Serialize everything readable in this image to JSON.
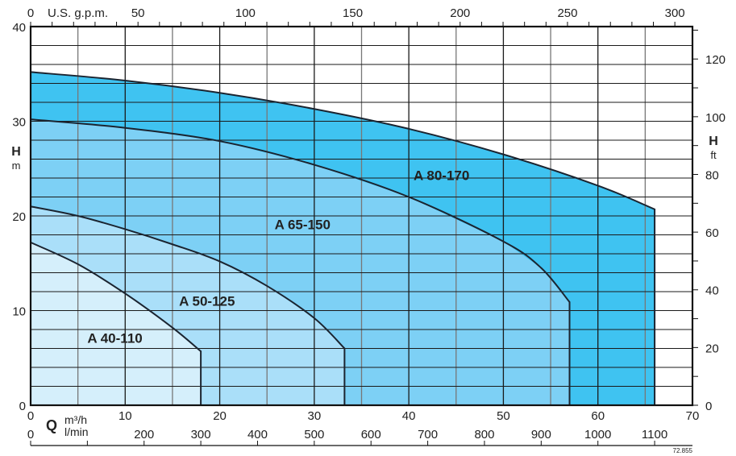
{
  "chart_data": {
    "type": "area",
    "x_axis_bottom_primary": {
      "label": "m³/h",
      "symbol": "Q",
      "range": [
        0,
        70
      ],
      "ticks": [
        0,
        10,
        20,
        30,
        40,
        50,
        60,
        70
      ]
    },
    "x_axis_bottom_secondary": {
      "label": "l/min",
      "range": [
        0,
        1166.7
      ],
      "ticks": [
        0,
        200,
        300,
        400,
        500,
        600,
        700,
        800,
        900,
        1000,
        1100
      ]
    },
    "x_axis_top": {
      "label": "U.S. g.p.m.",
      "range": [
        0,
        308.2
      ],
      "ticks": [
        0,
        50,
        100,
        150,
        200,
        250,
        300
      ]
    },
    "y_axis_left": {
      "label": "H",
      "unit": "m",
      "range": [
        0,
        40
      ],
      "ticks": [
        0,
        10,
        20,
        30,
        40
      ]
    },
    "y_axis_right": {
      "label": "H",
      "unit": "ft",
      "range": [
        0,
        131.2
      ],
      "ticks": [
        0,
        20,
        40,
        60,
        80,
        100,
        120
      ]
    },
    "grid": true,
    "series": [
      {
        "name": "A 80-170",
        "color": "#3fc3f1",
        "points": [
          [
            0,
            35.2
          ],
          [
            10,
            34.3
          ],
          [
            20,
            33
          ],
          [
            30,
            31.3
          ],
          [
            40,
            29.2
          ],
          [
            50,
            26.5
          ],
          [
            60,
            23.2
          ],
          [
            66,
            20.7
          ]
        ]
      },
      {
        "name": "A 65-150",
        "color": "#7dd0f5",
        "points": [
          [
            0,
            30.2
          ],
          [
            10,
            29.3
          ],
          [
            20,
            27.9
          ],
          [
            30,
            25.4
          ],
          [
            40,
            22
          ],
          [
            50,
            17.3
          ],
          [
            54,
            14.5
          ],
          [
            57,
            10.9
          ]
        ]
      },
      {
        "name": "A 50-125",
        "color": "#aadff9",
        "points": [
          [
            0,
            21
          ],
          [
            5,
            20
          ],
          [
            10,
            18.6
          ],
          [
            15,
            17
          ],
          [
            20,
            15.2
          ],
          [
            25,
            12.6
          ],
          [
            30,
            9.2
          ],
          [
            33.2,
            6
          ]
        ]
      },
      {
        "name": "A 40-110",
        "color": "#d5effb",
        "points": [
          [
            0,
            17.2
          ],
          [
            5,
            14.9
          ],
          [
            10,
            11.8
          ],
          [
            15,
            8.2
          ],
          [
            18,
            5.7
          ]
        ]
      }
    ],
    "footnote": "72.855"
  }
}
